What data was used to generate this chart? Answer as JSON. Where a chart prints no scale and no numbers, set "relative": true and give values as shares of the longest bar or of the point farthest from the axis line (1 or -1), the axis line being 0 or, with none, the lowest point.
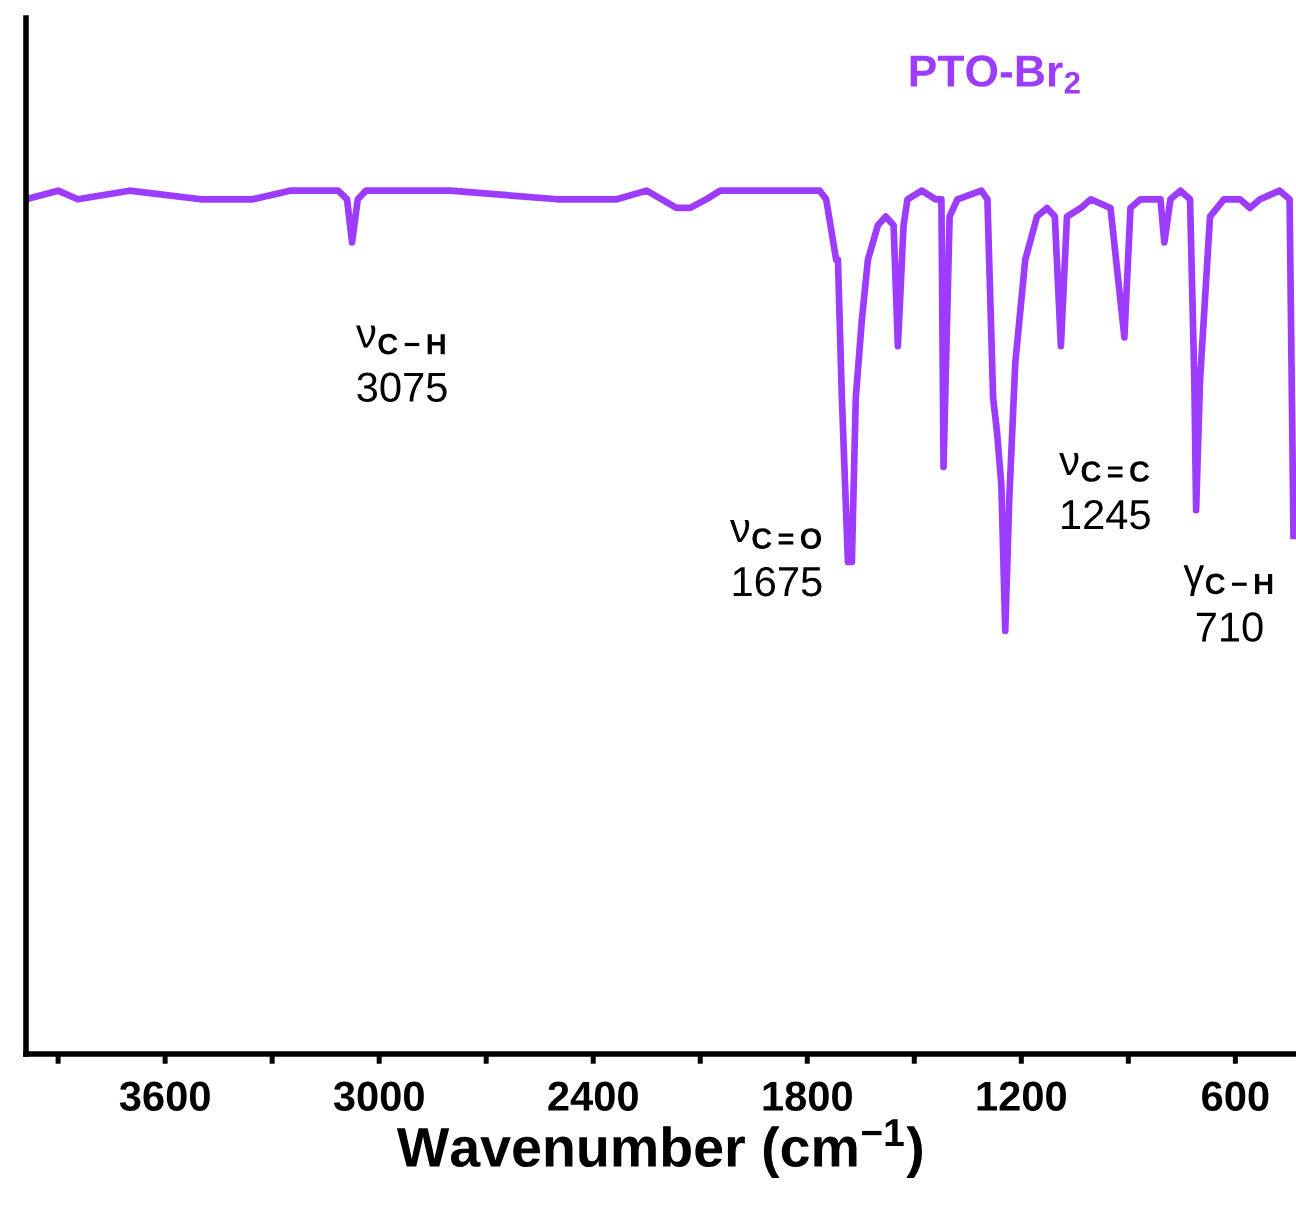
{
  "chart_data": {
    "type": "line",
    "title": "PTO-Br$_{2}$",
    "xlabel": "Wavenumber (cm$^{−1}$)",
    "relative": true,
    "xlim": [
      3990,
      430
    ],
    "xticks": [
      {
        "value": 3900,
        "label": null
      },
      3600,
      {
        "value": 3300,
        "label": null
      },
      3000,
      {
        "value": 2700,
        "label": null
      },
      2400,
      {
        "value": 2100,
        "label": null
      },
      1800,
      {
        "value": 1500,
        "label": null
      },
      1200,
      {
        "value": 900,
        "label": null
      },
      600
    ],
    "series": [
      {
        "color": "#9d3cff",
        "x": [
          3990,
          3900,
          3845,
          3700,
          3500,
          3355,
          3250,
          3115,
          3090,
          3076,
          3060,
          3037,
          2800,
          2500,
          2334,
          2250,
          2167,
          2128,
          2083,
          2044,
          1900,
          1765,
          1747,
          1719,
          1714,
          1703,
          1686,
          1675,
          1664,
          1647,
          1630,
          1602,
          1580,
          1558,
          1546,
          1530,
          1519,
          1479,
          1440,
          1424,
          1418,
          1401,
          1379,
          1312,
          1295,
          1279,
          1268,
          1256,
          1245,
          1234,
          1217,
          1189,
          1156,
          1128,
          1106,
          1089,
          1072,
          1033,
          1005,
          950,
          911,
          894,
          866,
          838,
          810,
          799,
          782,
          754,
          727,
          715,
          710,
          699,
          671,
          632,
          587,
          559,
          531,
          476,
          448,
          437
        ],
        "values": [
          0.99,
          1.0,
          0.99,
          1.0,
          0.99,
          0.99,
          1.0,
          1.0,
          0.99,
          0.94,
          0.99,
          1.0,
          1.0,
          0.99,
          0.99,
          1.0,
          0.98,
          0.98,
          0.99,
          1.0,
          1.0,
          1.0,
          0.99,
          0.92,
          0.92,
          0.76,
          0.57,
          0.57,
          0.76,
          0.85,
          0.92,
          0.96,
          0.97,
          0.96,
          0.82,
          0.96,
          0.99,
          1.0,
          0.99,
          0.99,
          0.68,
          0.97,
          0.99,
          1.0,
          0.99,
          0.76,
          0.72,
          0.66,
          0.49,
          0.64,
          0.8,
          0.92,
          0.97,
          0.98,
          0.97,
          0.82,
          0.97,
          0.98,
          0.99,
          0.98,
          0.83,
          0.98,
          0.99,
          0.99,
          0.99,
          0.94,
          0.99,
          1.0,
          0.99,
          0.78,
          0.63,
          0.78,
          0.97,
          0.99,
          0.99,
          0.98,
          0.99,
          1.0,
          0.99,
          0.6
        ]
      }
    ],
    "annotations": [
      {
        "text": "ν$_{C−H}$\n3075",
        "x": 3076,
        "y": 0.94
      },
      {
        "text": "ν$_{C=O}$\n1675",
        "x": 1675,
        "y": 0.57
      },
      {
        "text": "ν$_{C=C}$\n1245",
        "x": 1245,
        "y": 0.49
      },
      {
        "text": "γ$_{C−H}$\n710",
        "x": 710,
        "y": 0.63
      }
    ]
  }
}
